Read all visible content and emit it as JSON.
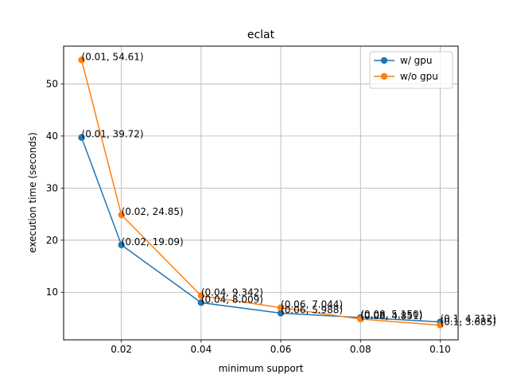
{
  "chart_data": {
    "type": "line",
    "title": "eclat",
    "xlabel": "minimum support",
    "ylabel": "execution time (seconds)",
    "xlim": [
      0.0055,
      0.1045
    ],
    "ylim": [
      0.87,
      57.25
    ],
    "x_ticks": [
      0.02,
      0.04,
      0.06,
      0.08,
      0.1
    ],
    "x_tick_labels": [
      "0.02",
      "0.04",
      "0.06",
      "0.08",
      "0.10"
    ],
    "y_ticks": [
      10,
      20,
      30,
      40,
      50
    ],
    "y_tick_labels": [
      "10",
      "20",
      "30",
      "40",
      "50"
    ],
    "grid": true,
    "legend_position": "top-right",
    "x": [
      0.01,
      0.02,
      0.04,
      0.06,
      0.08,
      0.1
    ],
    "series": [
      {
        "name": "w/ gpu",
        "color": "#1f77b4",
        "values": [
          39.72,
          19.09,
          8.009,
          5.988,
          5.15,
          4.312
        ],
        "point_labels": [
          "(0.01, 39.72)",
          "(0.02, 19.09)",
          "(0.04, 8.009)",
          "(0.06, 5.988)",
          "(0.08, 5.150)",
          "(0.1, 4.312)"
        ]
      },
      {
        "name": "w/o gpu",
        "color": "#ff7f0e",
        "values": [
          54.61,
          24.85,
          9.342,
          7.044,
          4.851,
          3.685
        ],
        "point_labels": [
          "(0.01, 54.61)",
          "(0.02, 24.85)",
          "(0.04, 9.342)",
          "(0.06, 7.044)",
          "(0.08, 4.851)",
          "(0.1, 3.685)"
        ]
      }
    ]
  }
}
